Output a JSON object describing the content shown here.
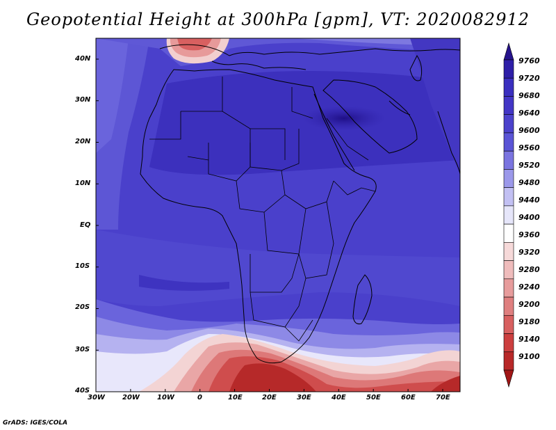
{
  "title": "Geopotential Height at 300hPa [gpm], VT: 2020082912",
  "footer": "GrADS: IGES/COLA",
  "map": {
    "lat_labels": [
      "40N",
      "30N",
      "20N",
      "10N",
      "EQ",
      "10S",
      "20S",
      "30S",
      "40S"
    ],
    "lon_labels": [
      "30W",
      "20W",
      "10W",
      "0",
      "10E",
      "20E",
      "30E",
      "40E",
      "50E",
      "60E",
      "70E"
    ]
  },
  "colorbar": {
    "levels": [
      9760,
      9720,
      9680,
      9640,
      9600,
      9560,
      9520,
      9480,
      9440,
      9400,
      9360,
      9320,
      9280,
      9240,
      9200,
      9180,
      9140,
      9100
    ],
    "colors": [
      "#26138c",
      "#2e1fa8",
      "#3a2fbf",
      "#4336c6",
      "#4c42cc",
      "#5a54d6",
      "#7a74e0",
      "#9b98ea",
      "#c2c0f3",
      "#e6e6fa",
      "#ffffff",
      "#f6d9d9",
      "#efbcbc",
      "#e79c9c",
      "#df7f7f",
      "#d86060",
      "#cc3f3f",
      "#b82828",
      "#a11616"
    ]
  }
}
